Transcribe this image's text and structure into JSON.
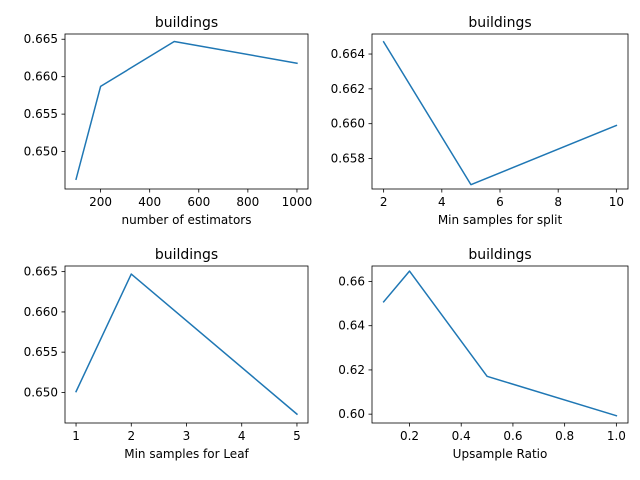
{
  "chart_data": [
    {
      "type": "line",
      "title": "buildings",
      "xlabel": "number of estimators",
      "ylabel": "",
      "xlim": [
        55,
        1045
      ],
      "ylim": [
        0.645,
        0.6657
      ],
      "xticks": [
        200,
        400,
        600,
        800,
        1000
      ],
      "xtick_labels": [
        "200",
        "400",
        "600",
        "800",
        "1000"
      ],
      "yticks": [
        0.65,
        0.655,
        0.66,
        0.665
      ],
      "ytick_labels": [
        "0.650",
        "0.655",
        "0.660",
        "0.665"
      ],
      "color": "#1f77b4",
      "grid": false,
      "x": [
        100,
        200,
        500,
        1000
      ],
      "values": [
        0.6463,
        0.6587,
        0.6647,
        0.6618
      ]
    },
    {
      "type": "line",
      "title": "buildings",
      "xlabel": "Min samples for split",
      "ylabel": "",
      "xlim": [
        1.6,
        10.4
      ],
      "ylim": [
        0.65625,
        0.66515
      ],
      "xticks": [
        2,
        4,
        6,
        8,
        10
      ],
      "xtick_labels": [
        "2",
        "4",
        "6",
        "8",
        "10"
      ],
      "yticks": [
        0.658,
        0.66,
        0.662,
        0.664
      ],
      "ytick_labels": [
        "0.658",
        "0.660",
        "0.662",
        "0.664"
      ],
      "color": "#1f77b4",
      "grid": false,
      "x": [
        2,
        5,
        10
      ],
      "values": [
        0.6647,
        0.6565,
        0.6599
      ]
    },
    {
      "type": "line",
      "title": "buildings",
      "xlabel": "Min samples for Leaf",
      "ylabel": "",
      "xlim": [
        0.8,
        5.2
      ],
      "ylim": [
        0.6462,
        0.6657
      ],
      "xticks": [
        1,
        2,
        3,
        4,
        5
      ],
      "xtick_labels": [
        "1",
        "2",
        "3",
        "4",
        "5"
      ],
      "yticks": [
        0.65,
        0.655,
        0.66,
        0.665
      ],
      "ytick_labels": [
        "0.650",
        "0.655",
        "0.660",
        "0.665"
      ],
      "color": "#1f77b4",
      "grid": false,
      "x": [
        1,
        2,
        5
      ],
      "values": [
        0.6501,
        0.6647,
        0.6473
      ]
    },
    {
      "type": "line",
      "title": "buildings",
      "xlabel": "Upsample Ratio",
      "ylabel": "",
      "xlim": [
        0.055,
        1.045
      ],
      "ylim": [
        0.596,
        0.667
      ],
      "xticks": [
        0.2,
        0.4,
        0.6,
        0.8,
        1.0
      ],
      "xtick_labels": [
        "0.2",
        "0.4",
        "0.6",
        "0.8",
        "1.0"
      ],
      "yticks": [
        0.6,
        0.62,
        0.64,
        0.66
      ],
      "ytick_labels": [
        "0.60",
        "0.62",
        "0.64",
        "0.66"
      ],
      "color": "#1f77b4",
      "grid": false,
      "x": [
        0.1,
        0.2,
        0.5,
        1.0
      ],
      "values": [
        0.6508,
        0.6647,
        0.6171,
        0.5993
      ]
    }
  ]
}
